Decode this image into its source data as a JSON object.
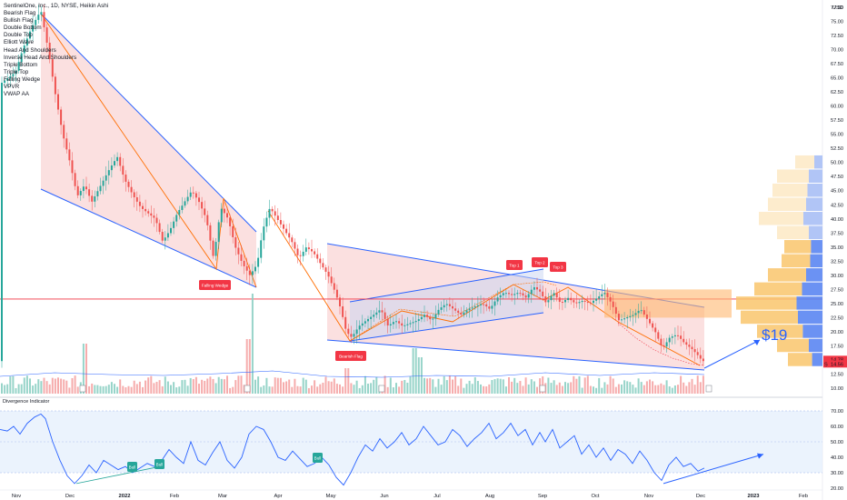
{
  "header": {
    "symbol_line": "SentinelOne, Inc., 1D, NYSE, Heikin Ashi",
    "indicators": [
      "Bearish Flag",
      "Bullish Flag",
      "Double Bottom",
      "Double Top",
      "Elliott Wave",
      "Head And Shoulders",
      "Inverse Head And Shoulders",
      "Triple Bottom",
      "Triple Top",
      "Falling Wedge",
      "VPVR",
      "VWAP AA"
    ]
  },
  "price_axis": {
    "currency": "USD",
    "ticks": [
      "77.50",
      "75.00",
      "72.50",
      "70.00",
      "67.50",
      "65.00",
      "62.50",
      "60.00",
      "57.50",
      "55.00",
      "52.50",
      "50.00",
      "47.50",
      "45.00",
      "42.50",
      "40.00",
      "37.50",
      "35.00",
      "32.50",
      "30.00",
      "27.50",
      "25.00",
      "22.50",
      "20.00",
      "17.50",
      "15.00",
      "12.50",
      "10.00"
    ],
    "badges": [
      {
        "label": "14.78",
        "color": "#f23645"
      },
      {
        "label": "14.56",
        "color": "#f23645"
      }
    ],
    "badge_marker": "S"
  },
  "indicator_pane": {
    "title": "Divergence Indicator",
    "ticks": [
      "70.00",
      "60.00",
      "50.00",
      "40.00",
      "30.00",
      "20.00"
    ],
    "band": [
      30,
      70
    ]
  },
  "time_axis": {
    "labels": [
      "Nov",
      "Dec",
      "2022",
      "Feb",
      "Mar",
      "Apr",
      "May",
      "Jun",
      "Jul",
      "Aug",
      "Sep",
      "Oct",
      "Nov",
      "Dec",
      "2023",
      "Feb"
    ]
  },
  "annotations": {
    "falling_wedge": "Falling Wedge",
    "bearish_flag": "Bearish Flag",
    "top1": "Top 1",
    "top2": "Top 2",
    "top3": "Top 3",
    "target": "$19",
    "bull1": "Bull",
    "bull2": "Bull",
    "bull3": "Bull"
  },
  "colors": {
    "up": "#26a69a",
    "down": "#ef5350",
    "trendline": "#2962ff",
    "wave": "#ff6d00",
    "flag_fill": "#f7c6c6",
    "indicator_line": "#2962ff",
    "band_fill": "#e3eefc"
  },
  "chart_data": {
    "type": "candlestick",
    "title": "SentinelOne, Inc., 1D, NYSE, Heikin Ashi",
    "ylim": [
      10,
      78
    ],
    "ylabel": "USD",
    "close_approx": [
      {
        "date": "Nov 2021",
        "close": 65
      },
      {
        "date": "Nov 2021 peak",
        "close": 77
      },
      {
        "date": "Dec 2021",
        "close": 50
      },
      {
        "date": "Jan 2022",
        "close": 45
      },
      {
        "date": "Feb 2022",
        "close": 43
      },
      {
        "date": "Mar 2022",
        "close": 31
      },
      {
        "date": "Apr 2022",
        "close": 41
      },
      {
        "date": "May 2022",
        "close": 21
      },
      {
        "date": "Jun 2022",
        "close": 23
      },
      {
        "date": "Jul 2022",
        "close": 24
      },
      {
        "date": "Aug 2022",
        "close": 27
      },
      {
        "date": "Sep 2022",
        "close": 25
      },
      {
        "date": "Oct 2022",
        "close": 24
      },
      {
        "date": "Nov 2022",
        "close": 17
      },
      {
        "date": "Dec 2022",
        "close": 14.78
      }
    ],
    "horizontal_line": 25.8,
    "target_label": "$19"
  }
}
